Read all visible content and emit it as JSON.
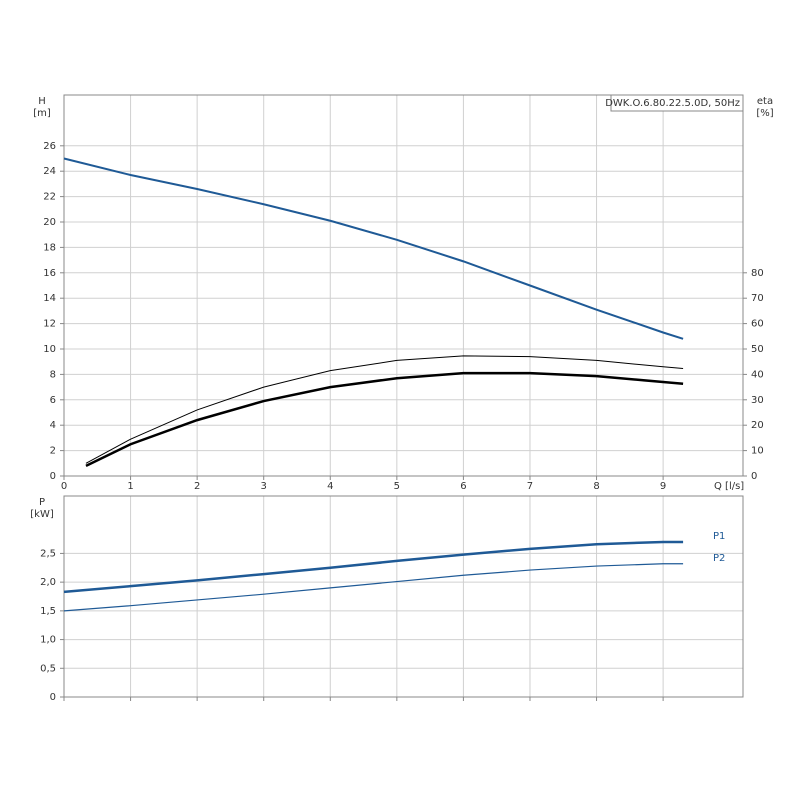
{
  "chart_data": [
    {
      "type": "line",
      "title": "DWK.O.6.80.22.5.0D, 50Hz",
      "xlabel": "Q [l/s]",
      "ylabel": "H",
      "yunit": "[m]",
      "y2label": "eta",
      "y2unit": "[%]",
      "xlim": [
        0,
        10.2
      ],
      "xticks": [
        0,
        1,
        2,
        3,
        4,
        5,
        6,
        7,
        8,
        9
      ],
      "show_xtick_labels": true,
      "ylim": [
        0,
        30
      ],
      "yticks": [
        0,
        2,
        4,
        6,
        8,
        10,
        12,
        14,
        16,
        18,
        20,
        22,
        24,
        26
      ],
      "y2lim": [
        0,
        150
      ],
      "y2ticks": [
        0,
        10,
        20,
        30,
        40,
        50,
        60,
        70,
        80
      ],
      "grid": true,
      "series": [
        {
          "color": "#1f5a96",
          "line_width": 2,
          "x": [
            0,
            1,
            2,
            3,
            4,
            5,
            6,
            7,
            8,
            9,
            9.3
          ],
          "values": [
            25,
            23.7,
            22.6,
            21.4,
            20.1,
            18.6,
            16.9,
            15.0,
            13.1,
            11.3,
            10.8
          ]
        },
        {
          "color": "#000000",
          "line_width": 1,
          "axis": "y2",
          "x": [
            0.33,
            1,
            2,
            3,
            4,
            5,
            6,
            7,
            8,
            9,
            9.3
          ],
          "values": [
            5,
            14.5,
            26,
            35,
            41.5,
            45.5,
            47.3,
            47,
            45.5,
            43,
            42.3
          ]
        },
        {
          "color": "#000000",
          "line_width": 2.5,
          "axis": "y2",
          "x": [
            0.33,
            1,
            2,
            3,
            4,
            5,
            6,
            7,
            8,
            9,
            9.3
          ],
          "values": [
            4,
            12.5,
            22,
            29.5,
            35,
            38.5,
            40.5,
            40.5,
            39.3,
            37,
            36.3
          ]
        }
      ]
    },
    {
      "type": "line",
      "ylabel": "P",
      "yunit": "[kW]",
      "xlim": [
        0,
        10.2
      ],
      "xticks": [
        0,
        1,
        2,
        3,
        4,
        5,
        6,
        7,
        8,
        9
      ],
      "show_xtick_labels": false,
      "ylim": [
        0,
        3.5
      ],
      "yticks": [
        0,
        {
          "value": 0.5,
          "label": "0,5"
        },
        {
          "value": 1.0,
          "label": "1,0"
        },
        {
          "value": 1.5,
          "label": "1,5"
        },
        {
          "value": 2.0,
          "label": "2,0"
        },
        {
          "value": 2.5,
          "label": "2,5"
        }
      ],
      "grid": true,
      "series": [
        {
          "name": "P1",
          "color": "#1f5a96",
          "line_width": 2.5,
          "x": [
            0,
            1,
            2,
            3,
            4,
            5,
            6,
            7,
            8,
            9,
            9.3
          ],
          "values": [
            1.83,
            1.93,
            2.03,
            2.14,
            2.25,
            2.37,
            2.48,
            2.58,
            2.66,
            2.7,
            2.7
          ]
        },
        {
          "name": "P2",
          "color": "#1f5a96",
          "line_width": 1.2,
          "x": [
            0,
            1,
            2,
            3,
            4,
            5,
            6,
            7,
            8,
            9,
            9.3
          ],
          "values": [
            1.5,
            1.59,
            1.69,
            1.79,
            1.9,
            2.01,
            2.12,
            2.21,
            2.28,
            2.32,
            2.32
          ]
        }
      ]
    }
  ]
}
